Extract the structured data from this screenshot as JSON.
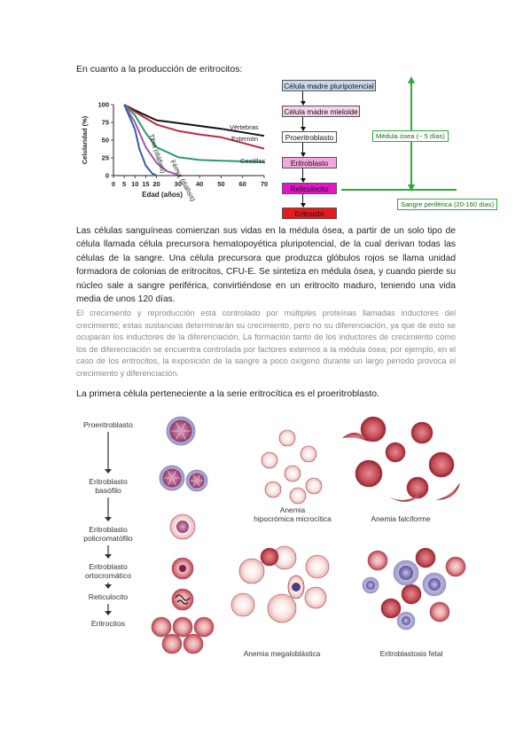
{
  "heading_top": "En cuanto a la producción de eritrocitos:",
  "chart_data": {
    "type": "line",
    "xlabel": "Edad (años)",
    "ylabel": "Celularidad (%)",
    "x_ticks": [
      0,
      5,
      10,
      15,
      20,
      30,
      40,
      50,
      60,
      70
    ],
    "y_ticks": [
      0,
      25,
      50,
      75,
      100
    ],
    "xlim": [
      0,
      70
    ],
    "ylim": [
      0,
      100
    ],
    "series": [
      {
        "name": "Vértebras",
        "color": "#111111",
        "x": [
          5,
          10,
          20,
          30,
          40,
          50,
          60,
          70
        ],
        "y": [
          100,
          92,
          78,
          74,
          70,
          66,
          61,
          56
        ]
      },
      {
        "name": "Esternón",
        "color": "#c0283c",
        "x": [
          5,
          10,
          20,
          30,
          40,
          50,
          60,
          70
        ],
        "y": [
          100,
          90,
          72,
          63,
          58,
          54,
          46,
          38
        ]
      },
      {
        "name": "Costillas",
        "color": "#2a9a6a",
        "x": [
          5,
          10,
          15,
          20,
          30,
          40,
          50,
          60,
          70
        ],
        "y": [
          100,
          85,
          60,
          40,
          26,
          22,
          21,
          20,
          19
        ]
      },
      {
        "name": "Fémur (diáfisis)",
        "color": "#9a5aa8",
        "x": [
          5,
          10,
          15,
          20,
          25,
          30
        ],
        "y": [
          100,
          75,
          40,
          18,
          6,
          1
        ]
      },
      {
        "name": "Tibia (diáfisis)",
        "color": "#3a5ab0",
        "x": [
          5,
          10,
          12,
          15,
          18,
          20
        ],
        "y": [
          100,
          65,
          38,
          14,
          3,
          0
        ]
      }
    ]
  },
  "flow": {
    "steps": [
      {
        "label": "Célula madre pluripotencial",
        "bg": "#c8d8f0"
      },
      {
        "label": "Célula madre mieloide",
        "bg": "#f4d4ea"
      },
      {
        "label": "Proeritroblasto",
        "bg": "#ffffff"
      },
      {
        "label": "Eritroblasto",
        "bg": "#f2a8dc"
      },
      {
        "label": "Reticulocito",
        "bg": "#e216c8"
      },
      {
        "label": "Eritrocito",
        "bg": "#e81b1b"
      }
    ],
    "medula": "Médula ósea (~ 5 días)",
    "sangre": "Sangre periférica (20-160 días)"
  },
  "paragraph1": "Las células sanguíneas comienzan sus vidas en la médula ósea, a partir de un solo tipo de célula llamada célula precursora hematopoyética pluripotencial, de la cual derivan todas las células de la sangre. Una célula precursora que produzca glóbulos rojos se llama unidad formadora de colonias de eritrocitos, CFU-E. Se sintetiza en médula ósea, y cuando pierde su núcleo sale a sangre periférica, convirtiéndose en un eritrocito maduro, teniendo una vida media de unos 120 días.",
  "paragraph2": "El crecimiento y reproducción está controlado por múltiples proteínas llamadas inductores del crecimiento; estas sustancias determinarán su crecimiento, pero no su diferenciación, ya que de esto se ocuparán los inductores de la diferenciación. La formación tanto de los inductores de crecimiento como los de diferenciación se encuentra controlada por factores externos a la médula ósea; por ejemplo, en el caso de los eritrocitos, la exposición de la sangre a poco oxígeno durante un largo período provoca el crecimiento y diferenciación.",
  "heading_bottom": "La primera célula perteneciente a la serie eritrocítica es el proeritroblasto.",
  "figure": {
    "stages": [
      "Proeritroblasto",
      "Eritroblasto\nbasófilo",
      "Eritroblasto\npolicromatófilo",
      "Eritroblasto\nortocromático",
      "Reticulocito",
      "Eritrocitos"
    ],
    "panel_labels": {
      "micro": "Anemia\nhipocrómica microcítica",
      "falci": "Anemia falciforme",
      "mega": "Anemia megaloblástica",
      "fetal": "Eritroblastosis fetal"
    }
  }
}
